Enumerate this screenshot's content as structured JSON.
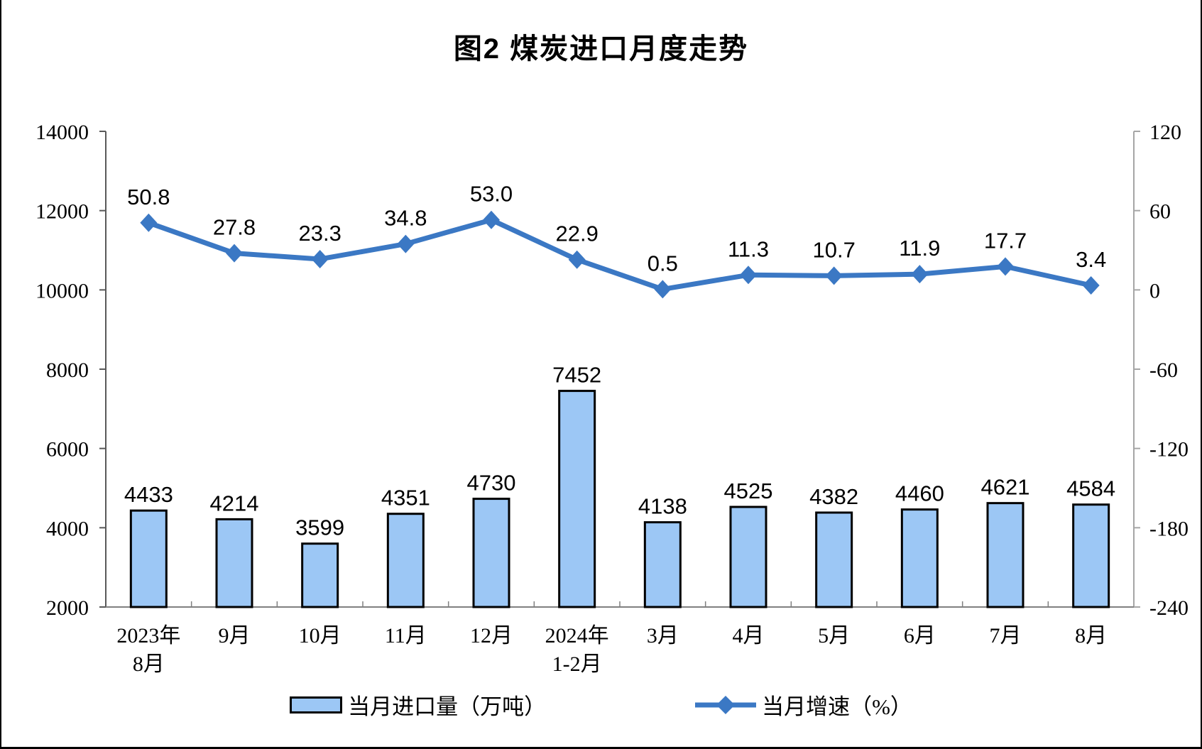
{
  "chart_data": {
    "type": "combo (bar + line, dual axis)",
    "title": "图2 煤炭进口月度走势",
    "categories": [
      [
        "2023年",
        "8月"
      ],
      [
        "9月"
      ],
      [
        "10月"
      ],
      [
        "11月"
      ],
      [
        "12月"
      ],
      [
        "2024年",
        "1-2月"
      ],
      [
        "3月"
      ],
      [
        "4月"
      ],
      [
        "5月"
      ],
      [
        "6月"
      ],
      [
        "7月"
      ],
      [
        "8月"
      ]
    ],
    "series": [
      {
        "name": "当月进口量（万吨）",
        "kind": "bar",
        "axis": "left",
        "values": [
          4433,
          4214,
          3599,
          4351,
          4730,
          7452,
          4138,
          4525,
          4382,
          4460,
          4621,
          4584
        ],
        "labels": [
          "4433",
          "4214",
          "3599",
          "4351",
          "4730",
          "7452",
          "4138",
          "4525",
          "4382",
          "4460",
          "4621",
          "4584"
        ]
      },
      {
        "name": "当月增速（%）",
        "kind": "line",
        "axis": "right",
        "values": [
          50.8,
          27.8,
          23.3,
          34.8,
          53.0,
          22.9,
          0.5,
          11.3,
          10.7,
          11.9,
          17.7,
          3.4
        ],
        "labels": [
          "50.8",
          "27.8",
          "23.3",
          "34.8",
          "53.0",
          "22.9",
          "0.5",
          "11.3",
          "10.7",
          "11.9",
          "17.7",
          "3.4"
        ]
      }
    ],
    "left_axis": {
      "min": 2000,
      "max": 14000,
      "ticks": [
        14000,
        12000,
        10000,
        8000,
        6000,
        4000,
        2000
      ]
    },
    "right_axis": {
      "min": -240,
      "max": 120,
      "ticks": [
        120,
        60,
        0,
        -60,
        -120,
        -180,
        -240
      ]
    },
    "grid": false,
    "legend_position": "bottom",
    "colors": {
      "bar_fill": "#9CC7F5",
      "bar_border": "#000000",
      "line": "#3B78C4",
      "left_axis_line": "#595959",
      "right_axis_line": "#A6A6A6",
      "baseline": "#808080",
      "text": "#000000"
    }
  },
  "legend": {
    "items": [
      {
        "label": "当月进口量（万吨）",
        "swatch": "bar"
      },
      {
        "label": "当月增速（%）",
        "swatch": "line-diamond"
      }
    ]
  }
}
